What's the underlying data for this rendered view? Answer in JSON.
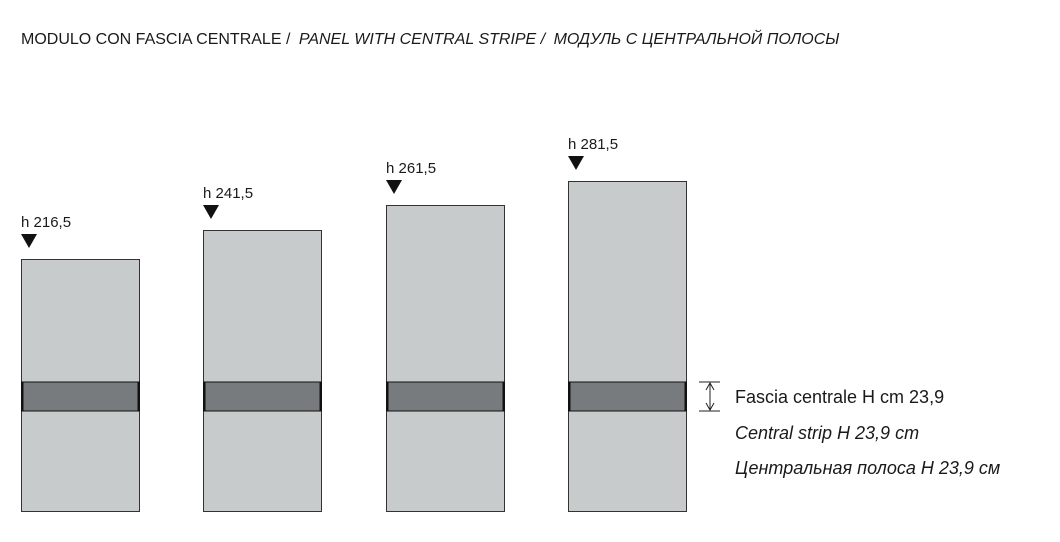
{
  "title": {
    "italian": "MODULO CON FASCIA CENTRALE /",
    "english": "PANEL WITH CENTRAL STRIPE /",
    "russian": "МОДУЛЬ С ЦЕНТРАЛЬНОЙ ПОЛОСЫ"
  },
  "panels": [
    {
      "label": "h 216,5"
    },
    {
      "label": "h 241,5"
    },
    {
      "label": "h 261,5"
    },
    {
      "label": "h 281,5"
    }
  ],
  "legend": {
    "italian": "Fascia centrale H cm 23,9",
    "english": "Central strip H 23,9 cm",
    "russian": "Центральная полоса H 23,9 см"
  }
}
